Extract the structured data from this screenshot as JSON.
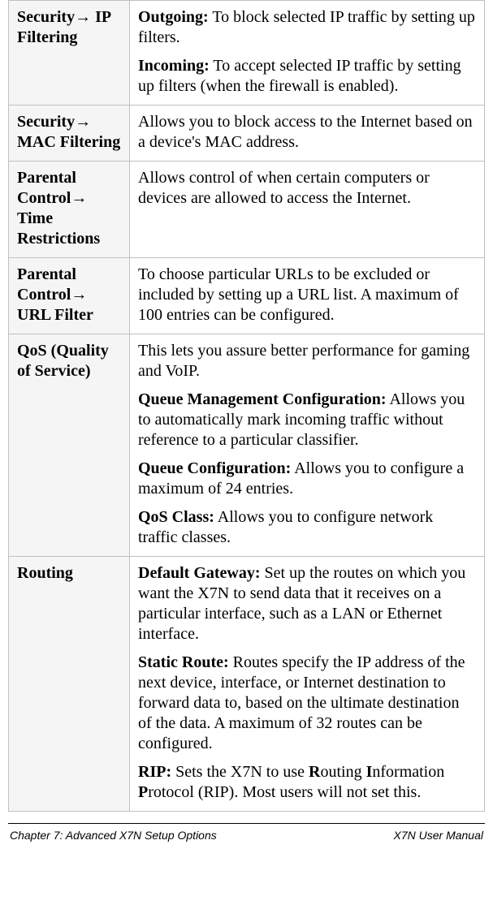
{
  "rows": {
    "ipFilter": {
      "label_a": "Security",
      "label_b": "IP Filtering",
      "p1_b": "Outgoing:",
      "p1_t": "  To block selected IP traffic by setting up filters.",
      "p2_b": "Incoming:",
      "p2_t": " To accept selected IP traffic by setting up filters (when the firewall is enabled)."
    },
    "macFilter": {
      "label_a": "Security",
      "label_b": "MAC Filtering",
      "desc": "Allows you to block access to the Internet based on a device's MAC address."
    },
    "timeRestrict": {
      "label_a": "Parental Control",
      "label_b": "Time Restrictions",
      "desc": "Allows control of when certain computers or devices are allowed to access the Internet."
    },
    "urlFilter": {
      "label_a": "Parental Control",
      "label_b": "URL Filter",
      "desc": "To choose particular URLs to be excluded or included by setting up a URL list. A maximum of 100 entries can be configured."
    },
    "qos": {
      "label": "QoS (Quality of Service)",
      "p1": "This lets you assure better performance for gaming and VoIP.",
      "p2_b": "Queue Management Configuration:",
      "p2_t": " Allows you to automatically mark incoming traffic without reference to a particular classifier.",
      "p3_b": "Queue Configuration:",
      "p3_t": " Allows you to configure a maximum of 24 entries.",
      "p4_b": "QoS Class:",
      "p4_t": " Allows you to configure network traffic classes."
    },
    "routing": {
      "label": "Routing",
      "p1_b": "Default Gateway:",
      "p1_t": " Set up the routes on which you want the X7N to send data that it receives on a particular interface, such as a LAN or Ethernet interface.",
      "p2_b": "Static Route:",
      "p2_t": " Routes specify the IP address of the next device, interface, or Internet destination to forward data to, based on the ultimate destination of the data.  A maximum of 32 routes can be configured.",
      "p3_b": "RIP:",
      "p3_t1": " Sets the X7N to use ",
      "p3_r": "R",
      "p3_t2": "outing ",
      "p3_i": "I",
      "p3_t3": "nformation ",
      "p3_p": "P",
      "p3_t4": "rotocol (RIP).  Most users will not set this."
    }
  },
  "arrow": "→",
  "footer": {
    "left": "Chapter 7: Advanced X7N Setup Options",
    "right": "X7N User Manual"
  }
}
